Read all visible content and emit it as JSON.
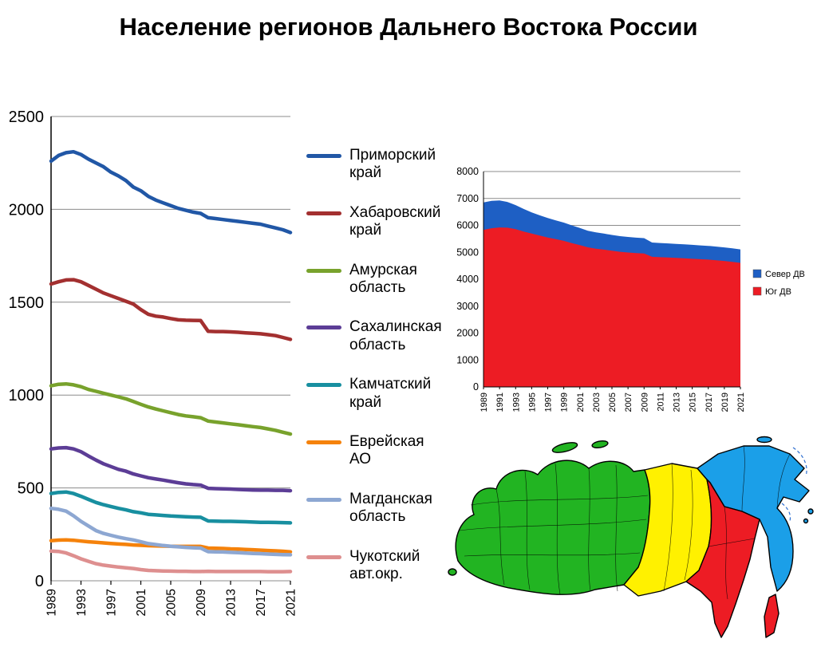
{
  "title": "Население регионов  Дальнего Востока России",
  "chart_data": [
    {
      "type": "line",
      "title": "",
      "xlabel": "",
      "ylabel": "",
      "ylim": [
        0,
        2500
      ],
      "y_ticks": [
        0,
        500,
        1000,
        1500,
        2000,
        2500
      ],
      "x_label_step": 4,
      "grid": true,
      "legend_position": "right",
      "x": [
        1989,
        1990,
        1991,
        1992,
        1993,
        1994,
        1995,
        1996,
        1997,
        1998,
        1999,
        2000,
        2001,
        2002,
        2003,
        2004,
        2005,
        2006,
        2007,
        2008,
        2009,
        2010,
        2011,
        2012,
        2013,
        2014,
        2015,
        2016,
        2017,
        2018,
        2019,
        2020,
        2021
      ],
      "series": [
        {
          "name": "Приморский край",
          "color": "#2157A6",
          "values": [
            2260,
            2290,
            2305,
            2310,
            2295,
            2270,
            2250,
            2230,
            2200,
            2180,
            2155,
            2120,
            2100,
            2070,
            2050,
            2035,
            2020,
            2005,
            1995,
            1985,
            1978,
            1955,
            1950,
            1945,
            1940,
            1935,
            1930,
            1925,
            1920,
            1910,
            1900,
            1890,
            1875
          ]
        },
        {
          "name": "Хабаровский край",
          "color": "#A33030",
          "values": [
            1598,
            1610,
            1620,
            1621,
            1610,
            1590,
            1570,
            1550,
            1535,
            1520,
            1505,
            1490,
            1460,
            1435,
            1425,
            1420,
            1412,
            1405,
            1403,
            1402,
            1401,
            1343,
            1342,
            1342,
            1340,
            1338,
            1335,
            1333,
            1330,
            1325,
            1320,
            1310,
            1300
          ]
        },
        {
          "name": "Амурская область",
          "color": "#78A22C",
          "values": [
            1050,
            1058,
            1060,
            1055,
            1045,
            1030,
            1020,
            1010,
            1000,
            990,
            980,
            965,
            950,
            936,
            925,
            915,
            905,
            895,
            888,
            883,
            878,
            860,
            855,
            850,
            845,
            840,
            835,
            830,
            825,
            818,
            810,
            800,
            790
          ]
        },
        {
          "name": "Сахалинская область",
          "color": "#5C3D96",
          "values": [
            710,
            715,
            717,
            710,
            695,
            672,
            650,
            630,
            615,
            600,
            590,
            575,
            565,
            555,
            548,
            542,
            535,
            528,
            522,
            518,
            515,
            498,
            496,
            495,
            494,
            492,
            490,
            489,
            488,
            488,
            487,
            487,
            485
          ]
        },
        {
          "name": "Камчатский край",
          "color": "#188FA0",
          "values": [
            470,
            476,
            478,
            470,
            455,
            438,
            422,
            410,
            400,
            390,
            382,
            372,
            366,
            358,
            355,
            352,
            349,
            347,
            345,
            343,
            342,
            322,
            321,
            320,
            320,
            319,
            318,
            316,
            315,
            315,
            314,
            313,
            312
          ]
        },
        {
          "name": "Еврейская АО",
          "color": "#F5820B",
          "values": [
            216,
            219,
            220,
            218,
            214,
            210,
            207,
            204,
            201,
            198,
            196,
            193,
            191,
            189,
            188,
            187,
            186,
            185,
            185,
            185,
            185,
            176,
            175,
            174,
            172,
            171,
            169,
            167,
            165,
            163,
            161,
            159,
            156
          ]
        },
        {
          "name": "Магданская область",
          "color": "#8DA7D2",
          "values": [
            390,
            385,
            375,
            350,
            320,
            295,
            270,
            255,
            245,
            235,
            227,
            220,
            210,
            200,
            195,
            190,
            186,
            183,
            180,
            178,
            176,
            157,
            156,
            155,
            153,
            151,
            149,
            147,
            146,
            144,
            142,
            141,
            140
          ]
        },
        {
          "name": "Чукотский авт.окр.",
          "color": "#DE8F8F",
          "values": [
            160,
            158,
            150,
            135,
            118,
            105,
            92,
            84,
            79,
            74,
            70,
            66,
            60,
            56,
            54,
            53,
            52,
            51,
            51,
            50,
            50,
            51,
            50,
            50,
            50,
            50,
            50,
            50,
            50,
            49,
            49,
            49,
            50
          ]
        }
      ]
    },
    {
      "type": "area",
      "stacked": true,
      "title": "",
      "ylim": [
        0,
        8000
      ],
      "y_ticks": [
        0,
        1000,
        2000,
        3000,
        4000,
        5000,
        6000,
        7000,
        8000
      ],
      "x_label_step": 2,
      "grid": true,
      "legend_position": "right",
      "stack_order_bottom_to_top": [
        "Юг ДВ",
        "Север ДВ"
      ],
      "x": [
        1989,
        1990,
        1991,
        1992,
        1993,
        1994,
        1995,
        1996,
        1997,
        1998,
        1999,
        2000,
        2001,
        2002,
        2003,
        2004,
        2005,
        2006,
        2007,
        2008,
        2009,
        2010,
        2011,
        2012,
        2013,
        2014,
        2015,
        2016,
        2017,
        2018,
        2019,
        2020,
        2021
      ],
      "series": [
        {
          "name": "Север ДВ",
          "color": "#1E5FC4",
          "values": [
            1020,
            1019,
            1003,
            955,
            893,
            838,
            784,
            749,
            724,
            699,
            679,
            658,
            636,
            614,
            604,
            595,
            587,
            581,
            576,
            571,
            568,
            530,
            527,
            525,
            523,
            520,
            517,
            513,
            511,
            508,
            505,
            503,
            502
          ]
        },
        {
          "name": "Юг ДВ",
          "color": "#ED1C24",
          "values": [
            5834,
            5892,
            5922,
            5914,
            5859,
            5772,
            5697,
            5624,
            5551,
            5488,
            5426,
            5343,
            5266,
            5185,
            5136,
            5099,
            5058,
            5018,
            4993,
            4973,
            4957,
            4832,
            4818,
            4806,
            4791,
            4776,
            4759,
            4744,
            4728,
            4704,
            4678,
            4646,
            4606
          ]
        }
      ]
    }
  ],
  "map": {
    "colors": {
      "rest_of_russia": "#22B422",
      "siberia": "#FFF100",
      "north_far_east": "#1B9FE8",
      "south_far_east": "#ED1C24"
    }
  }
}
